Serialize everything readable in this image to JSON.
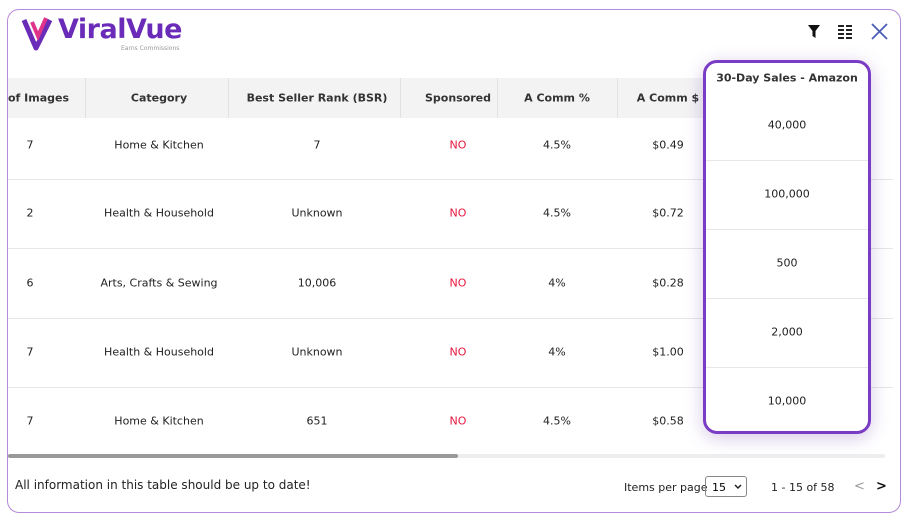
{
  "logo": {
    "name": "ViralVue",
    "tagline": "Earns Commissions"
  },
  "table": {
    "columns": [
      "of Images",
      "Category",
      "Best Seller Rank (BSR)",
      "Sponsored",
      "A Comm %",
      "A Comm $",
      "30-Day Sales - Amazon"
    ],
    "rows": [
      [
        "7",
        "Home & Kitchen",
        "7",
        "NO",
        "4.5%",
        "$0.49",
        "40,000"
      ],
      [
        "2",
        "Health & Household",
        "Unknown",
        "NO",
        "4.5%",
        "$0.72",
        "100,000"
      ],
      [
        "6",
        "Arts, Crafts & Sewing",
        "10,006",
        "NO",
        "4%",
        "$0.28",
        "500"
      ],
      [
        "7",
        "Health & Household",
        "Unknown",
        "NO",
        "4%",
        "$1.00",
        "2,000"
      ],
      [
        "7",
        "Home & Kitchen",
        "651",
        "NO",
        "4.5%",
        "$0.58",
        "10,000"
      ]
    ]
  },
  "footer": {
    "note": "All information in this table should be up to date!",
    "items_per_page_label": "Items per page",
    "items_per_page": "15",
    "range": "1 - 15 of 58",
    "prev": "<",
    "next": ">"
  }
}
